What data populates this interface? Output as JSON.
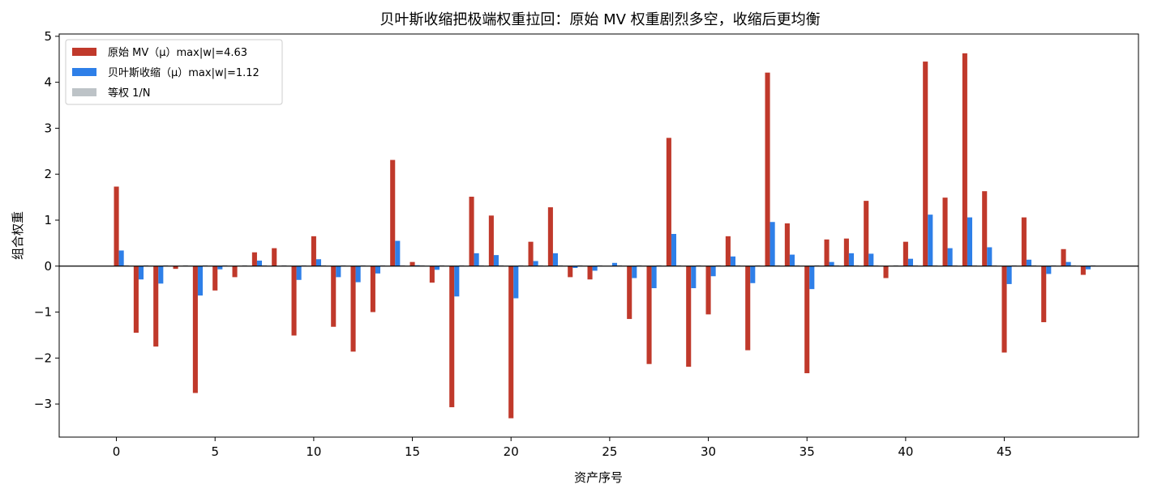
{
  "chart_data": {
    "type": "bar",
    "title": "贝叶斯收缩把极端权重拉回：原始 MV 权重剧烈多空，收缩后更均衡",
    "xlabel": "资产序号",
    "ylabel": "组合权重",
    "x": [
      0,
      1,
      2,
      3,
      4,
      5,
      6,
      7,
      8,
      9,
      10,
      11,
      12,
      13,
      14,
      15,
      16,
      17,
      18,
      19,
      20,
      21,
      22,
      23,
      24,
      25,
      26,
      27,
      28,
      29,
      30,
      31,
      32,
      33,
      34,
      35,
      36,
      37,
      38,
      39,
      40,
      41,
      42,
      43,
      44,
      45,
      46,
      47,
      48,
      49
    ],
    "xticks": [
      0,
      5,
      10,
      15,
      20,
      25,
      30,
      35,
      40,
      45
    ],
    "xticklabels": [
      "0",
      "5",
      "10",
      "15",
      "20",
      "25",
      "30",
      "35",
      "40",
      "45"
    ],
    "xlim": [
      -2.9,
      51.8
    ],
    "yticks": [
      -3,
      -2,
      -1,
      0,
      1,
      2,
      3,
      4,
      5
    ],
    "yticklabels": [
      "−3",
      "−2",
      "−1",
      "0",
      "1",
      "2",
      "3",
      "4",
      "5"
    ],
    "ylim": [
      -3.72,
      5.05
    ],
    "legend_position": "top-left",
    "grid": false,
    "zero_line": true,
    "series": [
      {
        "name": "原始 MV（μ）max|w|=4.63",
        "color": "#c0392b",
        "values": [
          1.73,
          -1.45,
          -1.75,
          -0.06,
          -2.76,
          -0.53,
          -0.24,
          0.3,
          0.39,
          -1.51,
          0.65,
          -1.32,
          -1.86,
          -1.0,
          2.31,
          0.09,
          -0.36,
          -3.07,
          1.51,
          1.1,
          -3.31,
          0.53,
          1.28,
          -0.24,
          -0.29,
          0.0,
          -1.15,
          -2.13,
          2.79,
          -2.19,
          -1.05,
          0.65,
          -1.83,
          4.21,
          0.93,
          -2.33,
          0.58,
          0.6,
          1.42,
          -0.26,
          0.53,
          4.45,
          1.49,
          4.63,
          1.63,
          -1.88,
          1.06,
          -1.22,
          0.37,
          -0.19
        ]
      },
      {
        "name": "贝叶斯收缩（μ）max|w|=1.12",
        "color": "#2e7fe8",
        "values": [
          0.34,
          -0.29,
          -0.38,
          0.0,
          -0.64,
          -0.07,
          0.0,
          0.12,
          0.0,
          -0.3,
          0.15,
          -0.24,
          -0.35,
          -0.16,
          0.55,
          0.02,
          -0.08,
          -0.66,
          0.28,
          0.24,
          -0.7,
          0.11,
          0.28,
          -0.04,
          -0.1,
          0.07,
          -0.26,
          -0.48,
          0.7,
          -0.48,
          -0.22,
          0.21,
          -0.37,
          0.96,
          0.25,
          -0.5,
          0.09,
          0.28,
          0.27,
          0.0,
          0.16,
          1.12,
          0.39,
          1.06,
          0.41,
          -0.39,
          0.14,
          -0.17,
          0.09,
          -0.07
        ]
      },
      {
        "name": "等权 1/N",
        "color": "#bdc3c7",
        "values": [
          0.02,
          0.02,
          0.02,
          0.02,
          0.02,
          0.02,
          0.02,
          0.02,
          0.02,
          0.02,
          0.02,
          0.02,
          0.02,
          0.02,
          0.02,
          0.02,
          0.02,
          0.02,
          0.02,
          0.02,
          0.02,
          0.02,
          0.02,
          0.02,
          0.02,
          0.02,
          0.02,
          0.02,
          0.02,
          0.02,
          0.02,
          0.02,
          0.02,
          0.02,
          0.02,
          0.02,
          0.02,
          0.02,
          0.02,
          0.02,
          0.02,
          0.02,
          0.02,
          0.02,
          0.02,
          0.02,
          0.02,
          0.02,
          0.02,
          0.02
        ]
      }
    ]
  }
}
